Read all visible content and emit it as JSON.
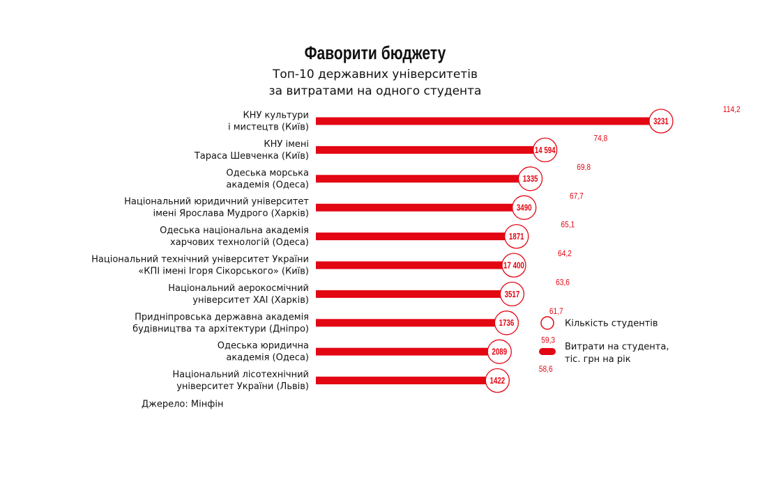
{
  "chart_data": {
    "type": "bar",
    "orientation": "horizontal",
    "title": "Фаворити бюджету",
    "subtitle": [
      "Топ-10 державних університетів",
      "за витратами на одного студента"
    ],
    "categories": [
      [
        "КНУ культури",
        "і мистецтв (Київ)"
      ],
      [
        "КНУ імені",
        "Тараса Шевченка (Київ)"
      ],
      [
        "Одеська морська",
        "академія (Одеса)"
      ],
      [
        "Національний юридичний університет",
        "імені Ярослава Мудрого (Харків)"
      ],
      [
        "Одеська національна академія",
        "харчових технологій (Одеса)"
      ],
      [
        "Національний технічний університет України",
        "«КПІ імені Ігоря Сікорського» (Київ)"
      ],
      [
        "Національний аерокосмічний",
        "університет ХАІ (Харків)"
      ],
      [
        "Придніпровська державна академія",
        "будівництва та архітектури (Дніпро)"
      ],
      [
        "Одеська юридична",
        "академія (Одеса)"
      ],
      [
        "Національний лісотехнічний",
        "університет України (Львів)"
      ]
    ],
    "series": [
      {
        "name": "Витрати на студента, тіс. грн на рік",
        "color": "#e30613",
        "values": [
          114.2,
          74.8,
          69.8,
          67.7,
          65.1,
          64.2,
          63.6,
          61.7,
          59.3,
          58.6
        ],
        "value_labels": [
          "114,2",
          "74,8",
          "69,8",
          "67,7",
          "65,1",
          "64,2",
          "63,6",
          "61,7",
          "59,3",
          "58,6"
        ]
      },
      {
        "name": "Кількість студентів",
        "color": "#e30613",
        "values": [
          3231,
          14594,
          1335,
          3490,
          1871,
          17400,
          3517,
          1736,
          2089,
          1422
        ],
        "value_labels": [
          "3231",
          "14 594",
          "1335",
          "3490",
          "1871",
          "17 400",
          "3517",
          "1736",
          "2089",
          "1422"
        ]
      }
    ],
    "source": "Джерело: Мінфін"
  }
}
